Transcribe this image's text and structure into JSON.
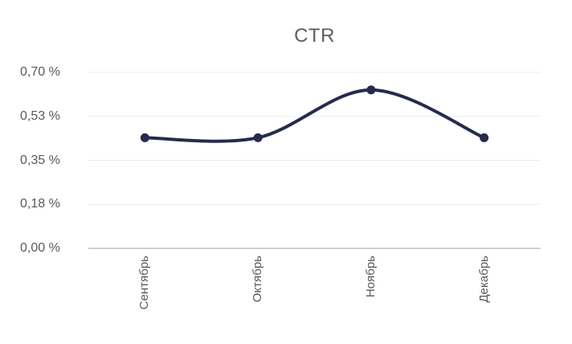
{
  "chart_data": {
    "type": "line",
    "title": "CTR",
    "categories": [
      "Сентябрь",
      "Октябрь",
      "Ноябрь",
      "Декабрь"
    ],
    "values": [
      0.44,
      0.44,
      0.63,
      0.44
    ],
    "unit": "%",
    "xlabel": "",
    "ylabel": "",
    "ylim": [
      0,
      0.7
    ],
    "ytick_labels": [
      "0,00 %",
      "0,18 %",
      "0,35 %",
      "0,53 %",
      "0,70 %"
    ],
    "grid": true,
    "legend": "none",
    "smooth": true,
    "colors": {
      "line": "#252b4e",
      "point": "#252b4e",
      "gridline": "#ececec",
      "axis_line": "#cfcfcf",
      "text": "#595959"
    }
  }
}
